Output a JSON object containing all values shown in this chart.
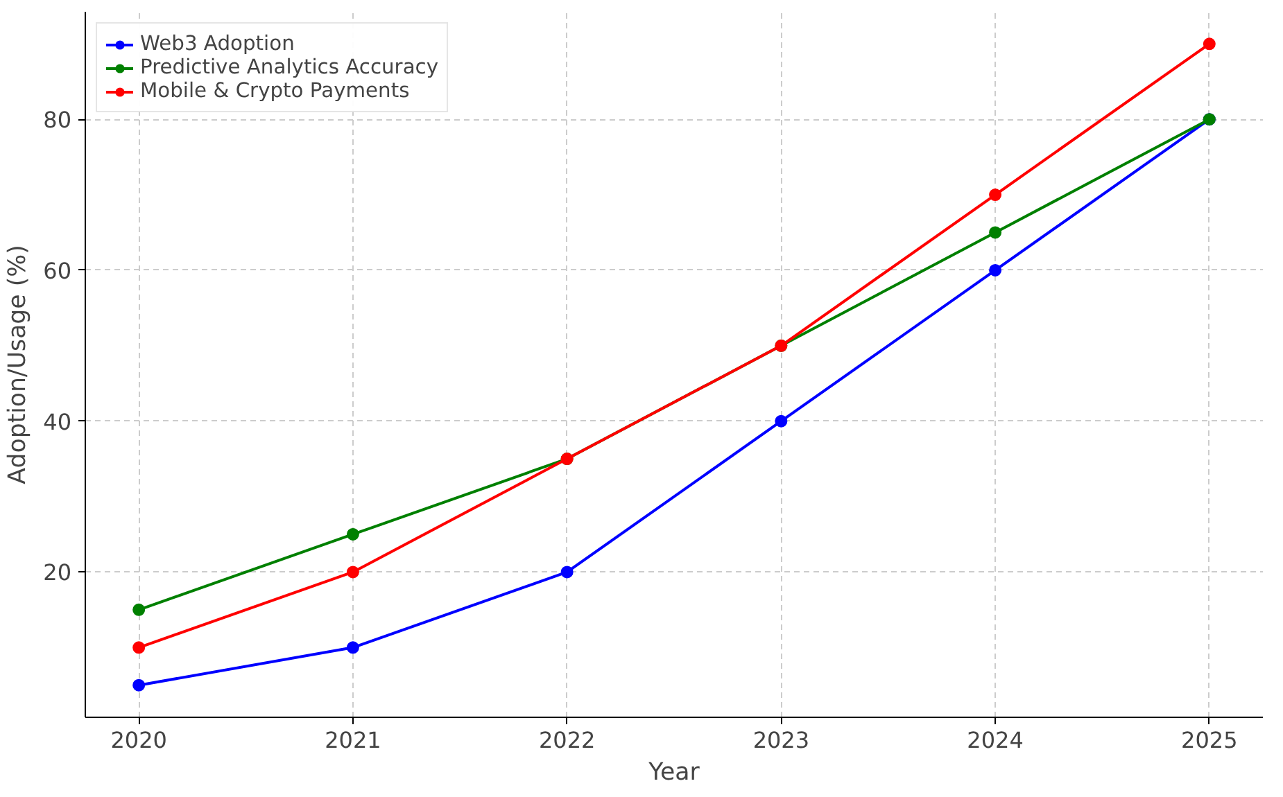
{
  "chart_data": {
    "type": "line",
    "xlabel": "Year",
    "ylabel": "Adoption/Usage (%)",
    "x": [
      2020,
      2021,
      2022,
      2023,
      2024,
      2025
    ],
    "series": [
      {
        "name": "Web3 Adoption",
        "color": "#0000ff",
        "values": [
          5,
          10,
          20,
          40,
          60,
          80
        ]
      },
      {
        "name": "Predictive Analytics Accuracy",
        "color": "#008000",
        "values": [
          15,
          25,
          35,
          50,
          65,
          80
        ]
      },
      {
        "name": "Mobile & Crypto Payments",
        "color": "#ff0000",
        "values": [
          10,
          20,
          35,
          50,
          70,
          90
        ]
      }
    ],
    "xlim": [
      2019.75,
      2025.25
    ],
    "ylim": [
      0.75,
      94.25
    ],
    "xticks": [
      2020,
      2021,
      2022,
      2023,
      2024,
      2025
    ],
    "yticks": [
      20,
      40,
      60,
      80
    ],
    "grid": true,
    "legend": "top left",
    "marker": "circle",
    "line_style": "solid"
  }
}
